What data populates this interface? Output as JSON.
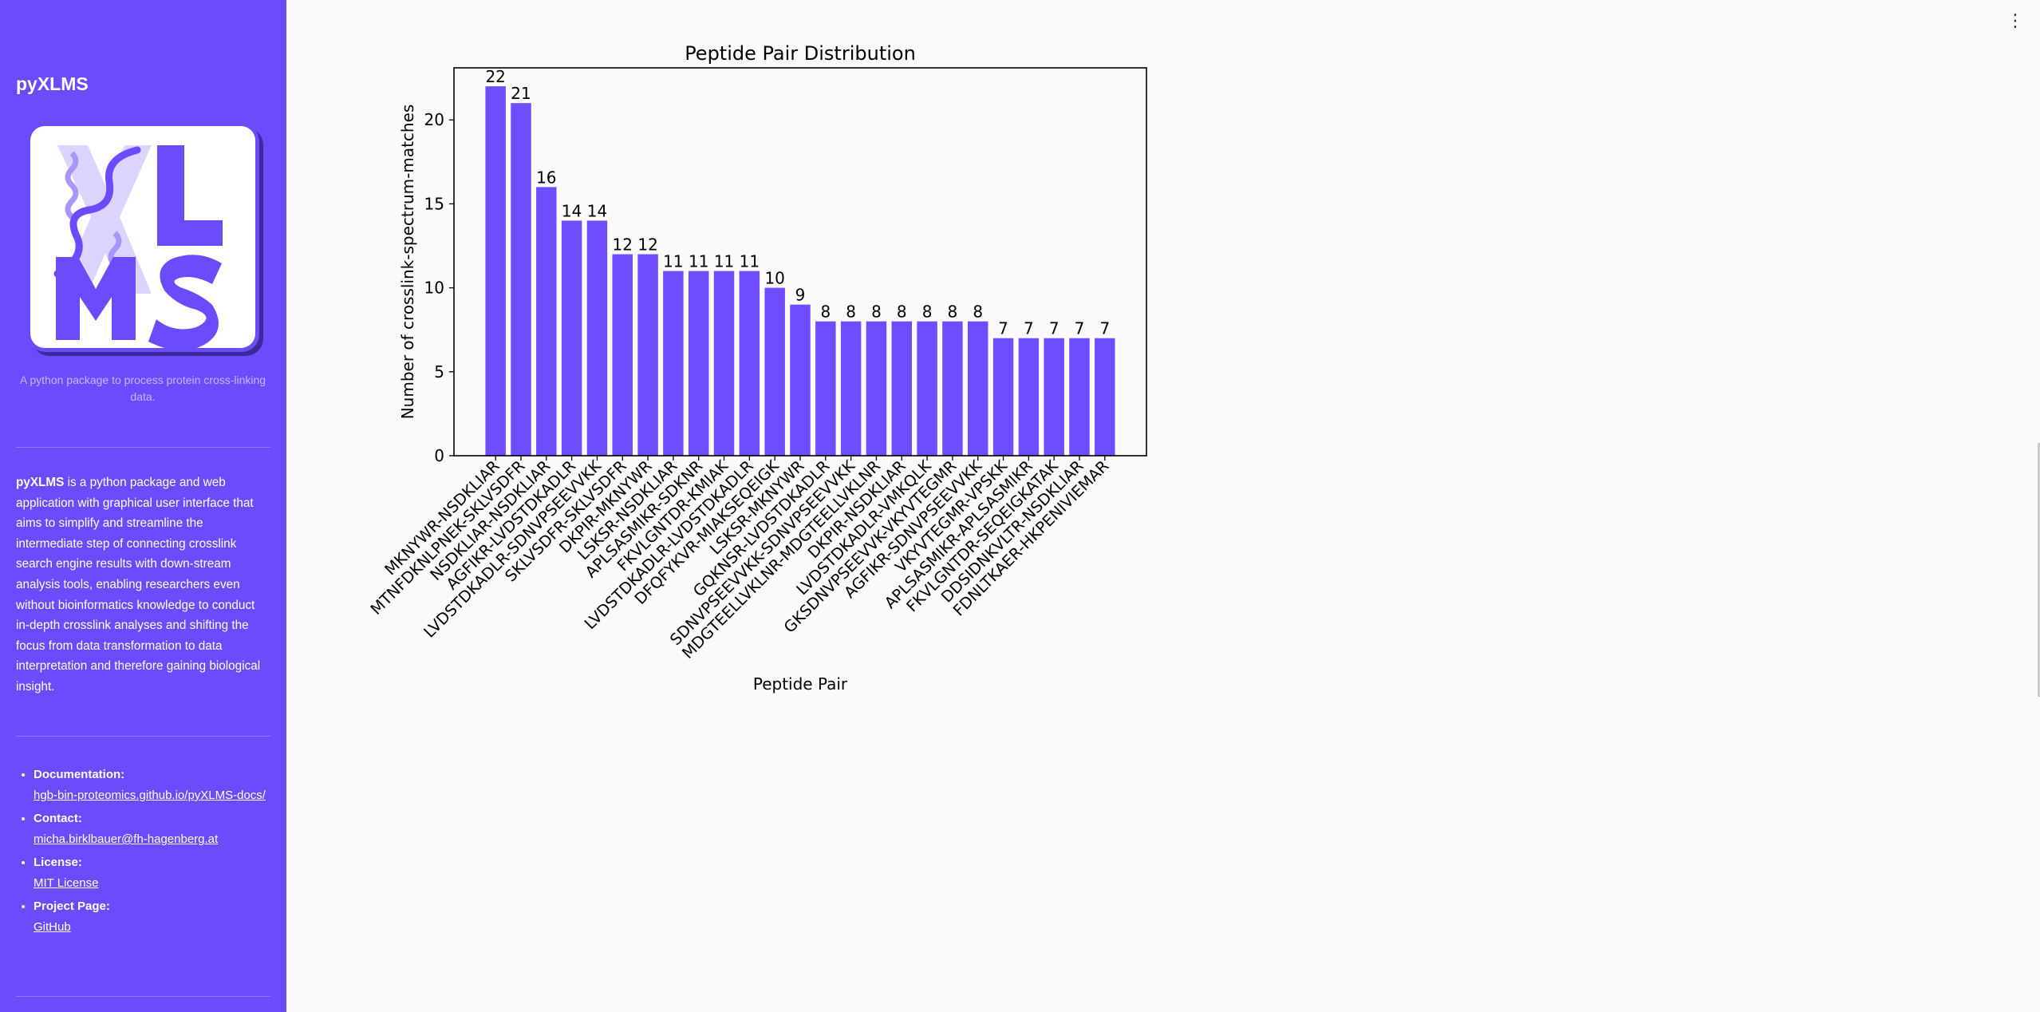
{
  "sidebar": {
    "title": "pyXLMS",
    "logo_text": "XLMS",
    "tagline": "A python package to process protein cross-linking data.",
    "description_bold": "pyXLMS",
    "description": " is a python package and web application with graphical user interface that aims to simplify and streamline the intermediate step of connecting crosslink search engine results with down-stream analysis tools, enabling researchers even without bioinformatics knowledge to conduct in-depth crosslink analyses and shifting the focus from data transformation to data interpretation and therefore gaining biological insight.",
    "links": [
      {
        "label": "Documentation:",
        "text": "hgb-bin-proteomics.github.io/pyXLMS-docs/"
      },
      {
        "label": "Contact:",
        "text": "micha.birklbauer@fh-hagenberg.at"
      },
      {
        "label": "License:",
        "text": "MIT License"
      },
      {
        "label": "Project Page:",
        "text": "GitHub"
      }
    ],
    "color": "#6c4bff"
  },
  "menu_icon": "⋮",
  "chart_data": {
    "type": "bar",
    "title": "Peptide Pair Distribution",
    "xlabel": "Peptide Pair",
    "ylabel": "Number of crosslink-spectrum-matches",
    "ylim": [
      0,
      23.1
    ],
    "yticks": [
      0,
      5,
      10,
      15,
      20
    ],
    "grid": false,
    "bar_color": "#6f4cff",
    "categories": [
      "MKNYWR-NSDKLIAR",
      "MTNFDKNLPNEK-SKLVSDFR",
      "NSDKLIAR-NSDKLIAR",
      "AGFIKR-LVDSTDKADLR",
      "LVDSTDKADLR-SDNVPSEEVVKK",
      "SKLVSDFR-SKLVSDFR",
      "DKPIR-MKNYWR",
      "LSKSR-NSDKLIAR",
      "APLSASMIKR-SDKNR",
      "FKVLGNTDR-KMIAK",
      "LVDSTDKADLR-LVDSTDKADLR",
      "DFQFYKVR-MIAKSEQEIGK",
      "LSKSR-MKNYWR",
      "GQKNSR-LVDSTDKADLR",
      "SDNVPSEEVVKK-SDNVPSEEVVKK",
      "MDGTEELLVKLNR-MDGTEELLVKLNR",
      "DKPIR-NSDKLIAR",
      "LVDSTDKADLR-VMKQLK",
      "GKSDNVPSEEVVK-VKYVTEGMR",
      "AGFIKR-SDNVPSEEVVKK",
      "VKYVTEGMR-VPSKK",
      "APLSASMIKR-APLSASMIKR",
      "FKVLGNTDR-SEQEIGKATAK",
      "DDSIDNKVLTR-NSDKLIAR",
      "FDNLTKAER-HKPENIVIEMAR"
    ],
    "values": [
      22,
      21,
      16,
      14,
      14,
      12,
      12,
      11,
      11,
      11,
      11,
      10,
      9,
      8,
      8,
      8,
      8,
      8,
      8,
      8,
      7,
      7,
      7,
      7,
      7
    ]
  }
}
